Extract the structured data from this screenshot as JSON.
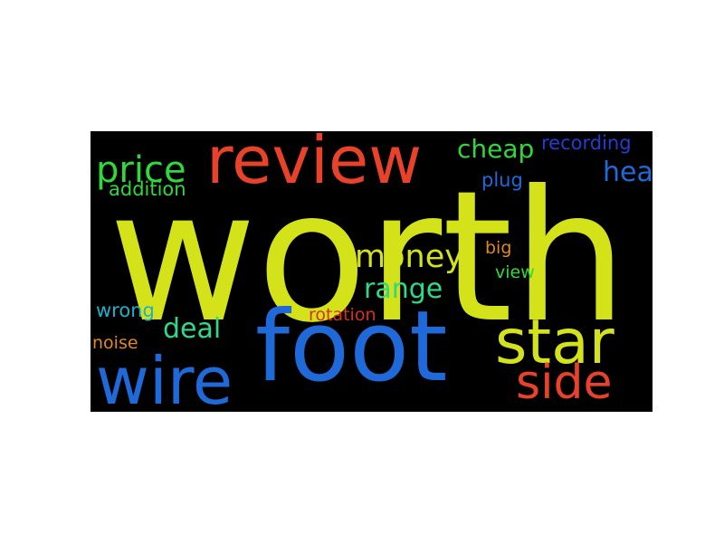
{
  "cloud": {
    "background": "#000000",
    "words": {
      "worth": {
        "text": "worth",
        "color": "#d4e21a"
      },
      "review": {
        "text": "review",
        "color": "#e8422a"
      },
      "foot": {
        "text": "foot",
        "color": "#1f69d8"
      },
      "star": {
        "text": "star",
        "color": "#d4e21a"
      },
      "wire": {
        "text": "wire",
        "color": "#1f69d8"
      },
      "side": {
        "text": "side",
        "color": "#e8422a"
      },
      "price": {
        "text": "price",
        "color": "#2fd93a"
      },
      "cheap": {
        "text": "cheap",
        "color": "#2fd93a"
      },
      "recording": {
        "text": "recording",
        "color": "#1f3fd1"
      },
      "head": {
        "text": "head",
        "color": "#1f69d8"
      },
      "addition": {
        "text": "addition",
        "color": "#2fd93a"
      },
      "plug": {
        "text": "plug",
        "color": "#1f69d8"
      },
      "money": {
        "text": "money",
        "color": "#d4e21a"
      },
      "range": {
        "text": "range",
        "color": "#2fd98a"
      },
      "big": {
        "text": "big",
        "color": "#e08a1a"
      },
      "view": {
        "text": "view",
        "color": "#2fd93a"
      },
      "wrong": {
        "text": "wrong",
        "color": "#1fb0c8"
      },
      "deal": {
        "text": "deal",
        "color": "#2fd98a"
      },
      "rotation": {
        "text": "rotation",
        "color": "#d8301f"
      },
      "noise": {
        "text": "noise",
        "color": "#e08a1a"
      }
    }
  }
}
